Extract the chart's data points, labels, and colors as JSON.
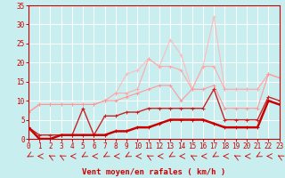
{
  "xlabel": "Vent moyen/en rafales ( km/h )",
  "bg_color": "#c8eef0",
  "grid_color": "#ffffff",
  "x": [
    0,
    1,
    2,
    3,
    4,
    5,
    6,
    7,
    8,
    9,
    10,
    11,
    12,
    13,
    14,
    15,
    16,
    17,
    18,
    19,
    20,
    21,
    22,
    23
  ],
  "series": [
    {
      "y": [
        7,
        9,
        9,
        9,
        9,
        9,
        9,
        10,
        12,
        17,
        18,
        21,
        19,
        26,
        22,
        13,
        19,
        32,
        13,
        13,
        13,
        13,
        17,
        16
      ],
      "color": "#ffbbbb",
      "lw": 0.8,
      "marker": "+"
    },
    {
      "y": [
        7,
        9,
        9,
        9,
        9,
        9,
        9,
        10,
        12,
        12,
        13,
        21,
        19,
        19,
        18,
        13,
        19,
        19,
        13,
        13,
        13,
        13,
        17,
        16
      ],
      "color": "#ffaaaa",
      "lw": 0.8,
      "marker": "+"
    },
    {
      "y": [
        7,
        9,
        9,
        9,
        9,
        9,
        9,
        10,
        10,
        11,
        12,
        13,
        14,
        14,
        10,
        13,
        13,
        14,
        8,
        8,
        8,
        8,
        17,
        16
      ],
      "color": "#ff9999",
      "lw": 0.8,
      "marker": "+"
    },
    {
      "y": [
        3,
        1,
        1,
        1,
        1,
        8,
        1,
        6,
        6,
        7,
        7,
        8,
        8,
        8,
        8,
        8,
        8,
        13,
        5,
        5,
        5,
        5,
        11,
        10
      ],
      "color": "#cc2222",
      "lw": 1.0,
      "marker": "+"
    },
    {
      "y": [
        3,
        0,
        0,
        1,
        1,
        1,
        1,
        1,
        2,
        2,
        3,
        3,
        4,
        5,
        5,
        5,
        5,
        4,
        3,
        3,
        3,
        3,
        10,
        9
      ],
      "color": "#cc0000",
      "lw": 1.8,
      "marker": "+"
    }
  ],
  "xlim": [
    0,
    23
  ],
  "ylim": [
    0,
    35
  ],
  "yticks": [
    0,
    5,
    10,
    15,
    20,
    25,
    30,
    35
  ],
  "xticks": [
    0,
    1,
    2,
    3,
    4,
    5,
    6,
    7,
    8,
    9,
    10,
    11,
    12,
    13,
    14,
    15,
    16,
    17,
    18,
    19,
    20,
    21,
    22,
    23
  ],
  "tick_color": "#cc0000",
  "label_fontsize": 5.5,
  "xlabel_fontsize": 6.5
}
